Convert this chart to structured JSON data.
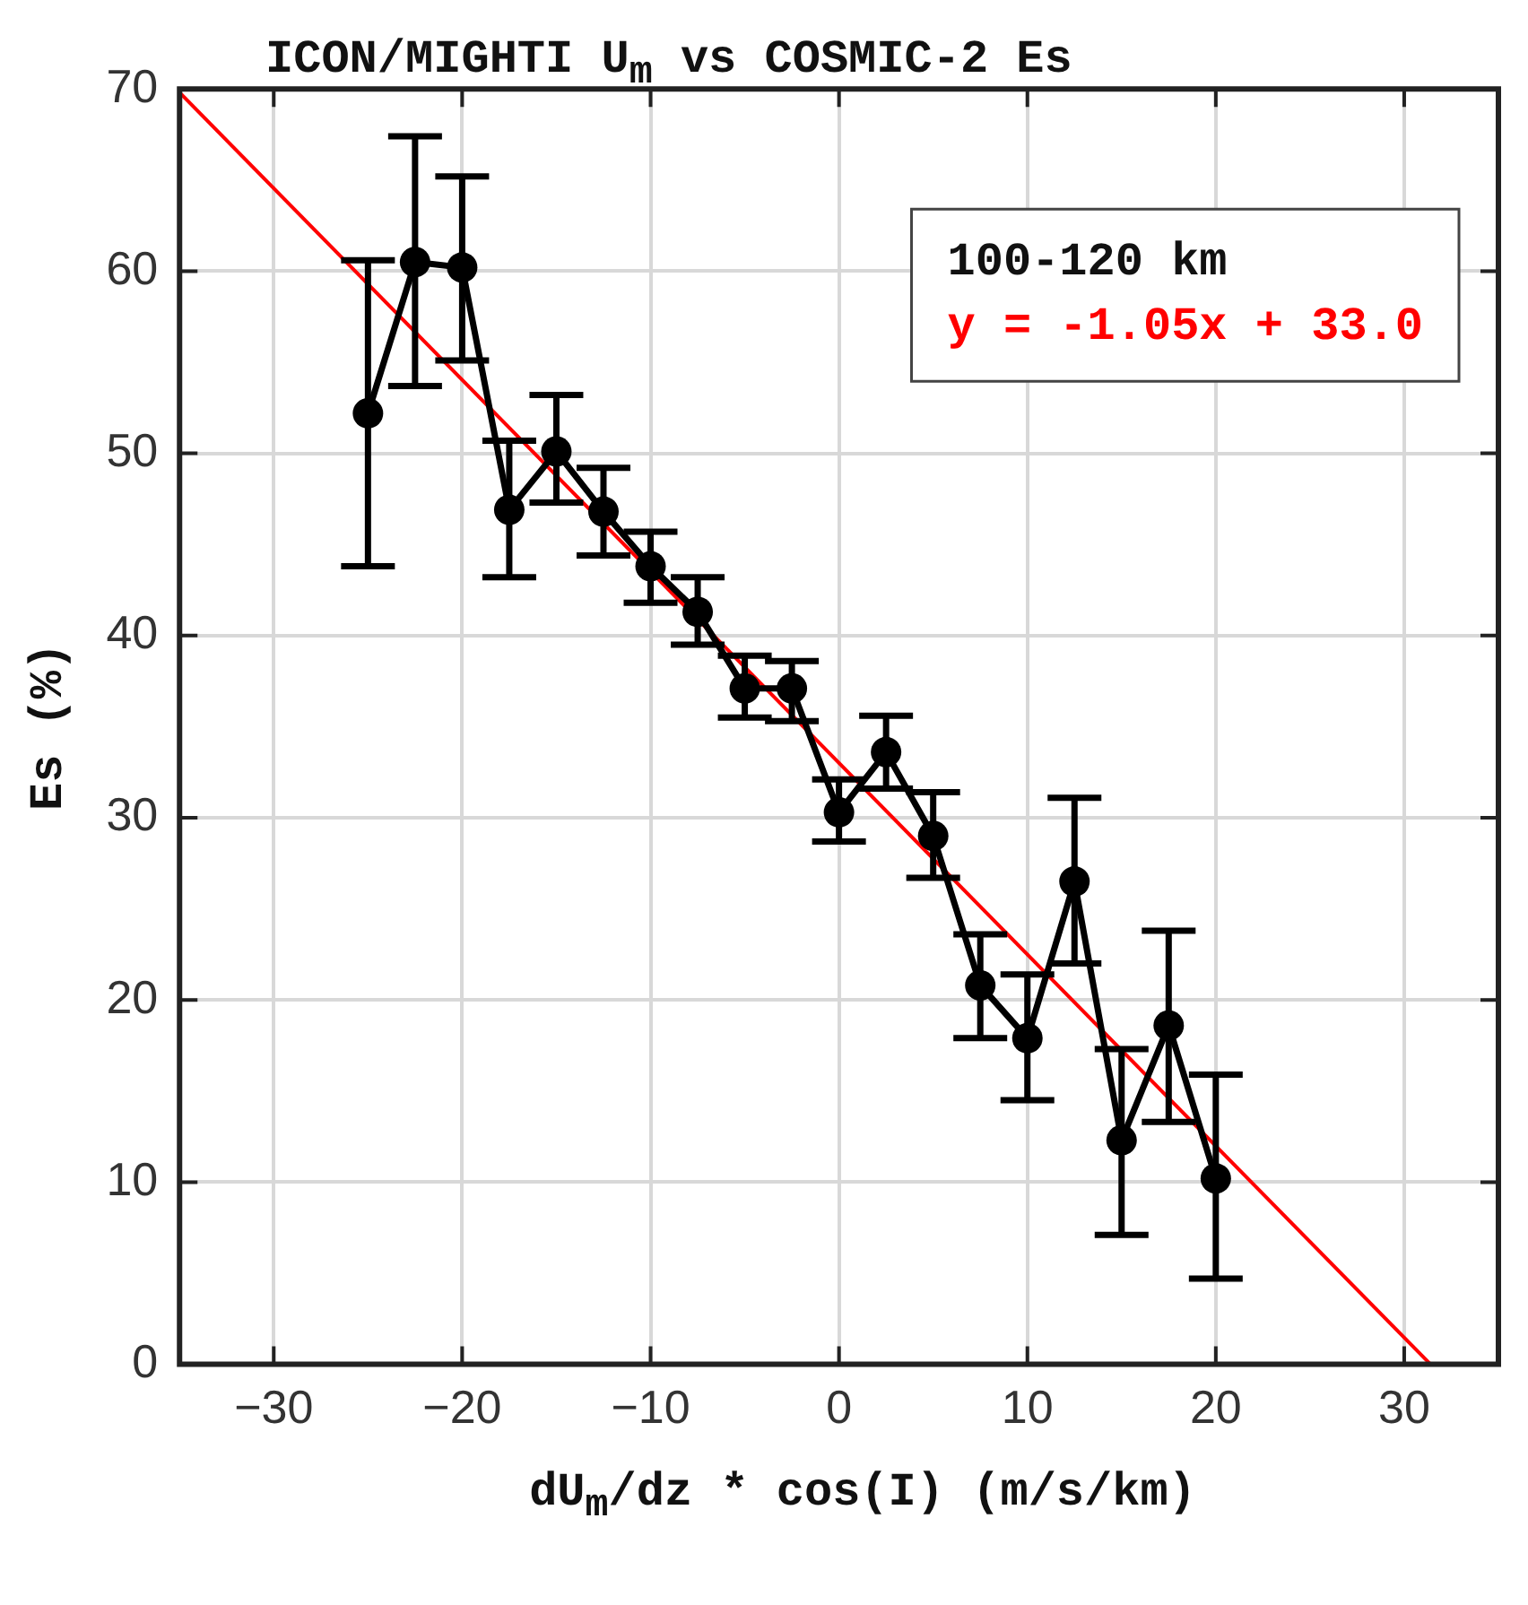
{
  "chart_data": {
    "type": "line",
    "title": "ICON/MIGHTI U$_{m}$ vs COSMIC-2 Es",
    "xlabel": "dU$_{m}$/dz * cos(I) (m/s/km)",
    "ylabel": "Es (%)",
    "legend_title": "100-120 km",
    "legend": "top right",
    "grid": true,
    "marker": "circle",
    "line_style": "solid",
    "xlim": [
      -35,
      35
    ],
    "xticks": [
      -30,
      -20,
      -10,
      0,
      10,
      20,
      30
    ],
    "ylim": [
      0,
      70
    ],
    "yticks": [
      0,
      10,
      20,
      30,
      40,
      50,
      60,
      70
    ],
    "series": [
      {
        "color": "#000000",
        "x": [
          -25,
          -22.5,
          -20,
          -17.5,
          -15,
          -12.5,
          -10,
          -7.5,
          -5,
          -2.5,
          0,
          2.5,
          5,
          7.5,
          10,
          12.5,
          15,
          17.5,
          20
        ],
        "values": [
          52.2,
          60.5,
          60.2,
          46.9,
          50.1,
          46.8,
          43.8,
          41.3,
          37.1,
          37.1,
          30.3,
          33.6,
          29.0,
          20.8,
          17.9,
          26.5,
          12.3,
          18.6,
          10.2
        ],
        "errors": [
          [
            43.8,
            60.6
          ],
          [
            53.7,
            67.4
          ],
          [
            55.1,
            65.2
          ],
          [
            43.2,
            50.7
          ],
          [
            47.3,
            53.2
          ],
          [
            44.4,
            49.2
          ],
          [
            41.8,
            45.7
          ],
          [
            39.5,
            43.2
          ],
          [
            35.5,
            38.9
          ],
          [
            35.3,
            38.6
          ],
          [
            28.7,
            32.1
          ],
          [
            31.6,
            35.6
          ],
          [
            26.7,
            31.4
          ],
          [
            17.9,
            23.6
          ],
          [
            14.5,
            21.4
          ],
          [
            22.0,
            31.1
          ],
          [
            7.1,
            17.3
          ],
          [
            13.3,
            23.8
          ],
          [
            4.7,
            15.9
          ]
        ]
      },
      {
        "type": "line",
        "name": "y = -1.05x + 33.0",
        "color": "#ff0000",
        "marker": "none",
        "x": [
          -35,
          31.4
        ],
        "values": [
          69.8,
          0
        ]
      }
    ]
  }
}
